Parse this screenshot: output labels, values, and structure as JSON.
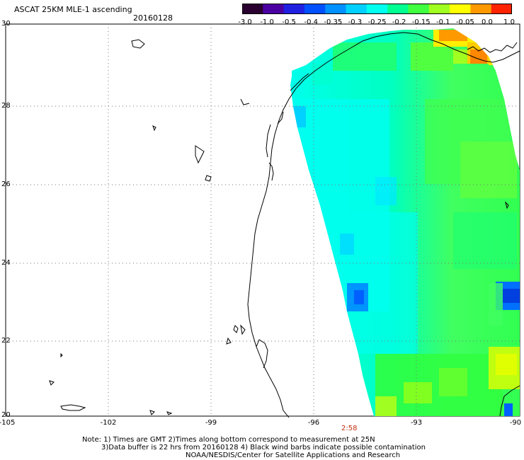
{
  "header": {
    "title": "ASCAT 25KM MLE-1 ascending",
    "date": "20160128"
  },
  "colorbar": {
    "ticks": [
      "-3.0",
      "-1.0",
      "-0.5",
      "-0.4",
      "-0.35",
      "-0.3",
      "-0.25",
      "-0.2",
      "-0.15",
      "-0.1",
      "-0.05",
      "0.0",
      "1.0"
    ],
    "colors": [
      "#2a0030",
      "#4a00a0",
      "#2020e0",
      "#0050ff",
      "#0090ff",
      "#00d0ff",
      "#00ffee",
      "#00ff90",
      "#40ff40",
      "#a0ff20",
      "#ffff00",
      "#ff9900",
      "#ff2200"
    ]
  },
  "map": {
    "y_axis_labels": [
      "30",
      "28",
      "26",
      "24",
      "22",
      "20"
    ],
    "x_axis_labels": [
      "-105",
      "-102",
      "-99",
      "-96",
      "-93",
      "-90"
    ],
    "time_label": "2:58"
  },
  "footer": {
    "line1": "Note: 1) Times are GMT 2)Times along bottom correspond to measurement at 25N",
    "line2": "3)Data buffer is 22 hrs from 20160128 4) Black wind barbs indicate possible contamination",
    "line3": "NOAA/NESDIS/Center for Satellite Applications and Research"
  }
}
